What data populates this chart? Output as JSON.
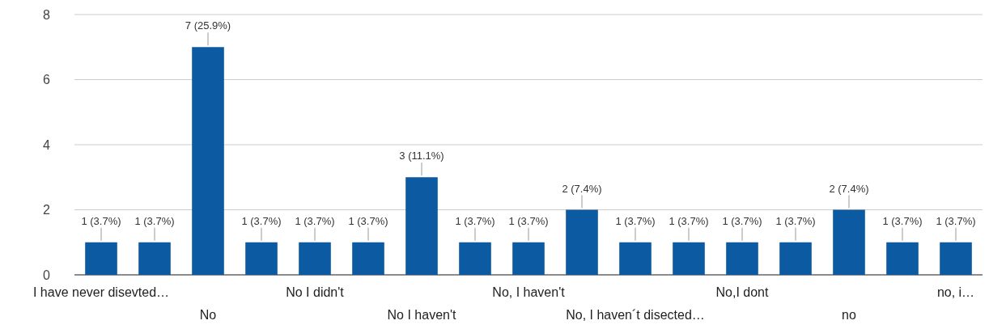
{
  "chart_data": {
    "type": "bar",
    "categories": [
      "I have never disevted…",
      null,
      "No",
      null,
      "No I didn't",
      null,
      "No I haven't",
      null,
      "No, I haven't",
      null,
      "No, I haven´t disected…",
      null,
      "No,I dont",
      null,
      "no",
      null,
      "no, i…"
    ],
    "values": [
      1,
      1,
      7,
      1,
      1,
      1,
      3,
      1,
      1,
      2,
      1,
      1,
      1,
      1,
      2,
      1,
      1
    ],
    "value_labels": [
      "1 (3.7%)",
      "1 (3.7%)",
      "7 (25.9%)",
      "1 (3.7%)",
      "1 (3.7%)",
      "1 (3.7%)",
      "3 (11.1%)",
      "1 (3.7%)",
      "1 (3.7%)",
      "2 (7.4%)",
      "1 (3.7%)",
      "1 (3.7%)",
      "1 (3.7%)",
      "1 (3.7%)",
      "2 (7.4%)",
      "1 (3.7%)",
      "1 (3.7%)"
    ],
    "color": "#0b5aa2",
    "ylim": [
      0,
      8
    ],
    "yticks": [
      0,
      2,
      4,
      6,
      8
    ],
    "grid": "y"
  }
}
